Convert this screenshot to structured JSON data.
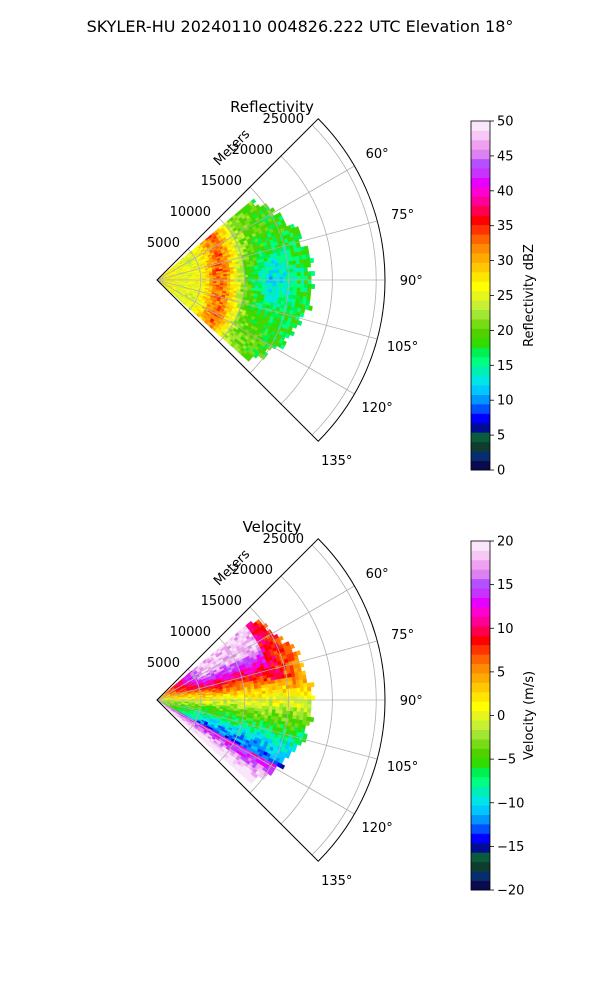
{
  "suptitle": "SKYLER-HU  20240110  004826.222 UTC Elevation 18°",
  "chart_data": [
    {
      "type": "heatmap",
      "subtype": "polar-sector (radar PPI wedge)",
      "title": "Reflectivity",
      "radial_axis_label": "Meters",
      "radial_ticks": [
        5000,
        10000,
        15000,
        20000,
        25000
      ],
      "radial_range_m": [
        0,
        26000
      ],
      "theta_ticks_deg": [
        60,
        75,
        90,
        105,
        120,
        135
      ],
      "theta_range_deg": [
        45,
        135
      ],
      "grid": true,
      "colorbar": {
        "label": "Reflectivity dBZ",
        "min": 0,
        "max": 50,
        "ticks": [
          0,
          5,
          10,
          15,
          20,
          25,
          30,
          35,
          40,
          45,
          50
        ],
        "colors": [
          "#0a0a50",
          "#062d6e",
          "#0f3d2d",
          "#0a5a3c",
          "#000c94",
          "#0000ff",
          "#0050ff",
          "#0096ff",
          "#00c8ff",
          "#00e6e6",
          "#00f0b4",
          "#00ff80",
          "#00f050",
          "#32dc00",
          "#50d200",
          "#78dc14",
          "#a0e632",
          "#c8f032",
          "#e6f51e",
          "#ffff00",
          "#ffe600",
          "#ffc800",
          "#ffaa00",
          "#ff8c00",
          "#ff6400",
          "#ff3200",
          "#ff0000",
          "#ff0050",
          "#ff0096",
          "#ff00d2",
          "#e600ff",
          "#c832ff",
          "#b450ff",
          "#dc82f0",
          "#f0a0f0",
          "#f5c8f5",
          "#fae6fa"
        ]
      },
      "field": {
        "data_max_range_m": 18000,
        "theta_extent_deg": [
          50,
          130
        ],
        "description_levels_dbz": {
          "near_core": 27,
          "band_peak": 36,
          "outer_edge": 17
        }
      }
    },
    {
      "type": "heatmap",
      "subtype": "polar-sector (radar PPI wedge)",
      "title": "Velocity",
      "radial_axis_label": "Meters",
      "radial_ticks": [
        5000,
        10000,
        15000,
        20000,
        25000
      ],
      "radial_range_m": [
        0,
        26000
      ],
      "theta_ticks_deg": [
        60,
        75,
        90,
        105,
        120,
        135
      ],
      "theta_range_deg": [
        45,
        135
      ],
      "grid": true,
      "colorbar": {
        "label": "Velocity (m/s)",
        "min": -20,
        "max": 20,
        "ticks": [
          -20,
          -15,
          -10,
          -5,
          0,
          5,
          10,
          15,
          20
        ],
        "colors": [
          "#0a0a50",
          "#062d6e",
          "#0f3d2d",
          "#0a5a3c",
          "#000c94",
          "#0000ff",
          "#0050ff",
          "#0096ff",
          "#00c8ff",
          "#00e6e6",
          "#00f0b4",
          "#00ff80",
          "#00f050",
          "#32dc00",
          "#50d200",
          "#78dc14",
          "#a0e632",
          "#c8f032",
          "#e6f51e",
          "#ffff00",
          "#ffe600",
          "#ffc800",
          "#ffaa00",
          "#ff8c00",
          "#ff6400",
          "#ff3200",
          "#ff0000",
          "#ff0050",
          "#ff0096",
          "#ff00d2",
          "#e600ff",
          "#c832ff",
          "#b450ff",
          "#dc82f0",
          "#f0a0f0",
          "#f5c8f5",
          "#fae6fa"
        ]
      },
      "field": {
        "data_max_range_m": 18000,
        "theta_extent_deg": [
          50,
          130
        ],
        "description_levels_ms": {
          "left_flank": 16,
          "right_flank": -10,
          "center": 0
        }
      }
    }
  ]
}
